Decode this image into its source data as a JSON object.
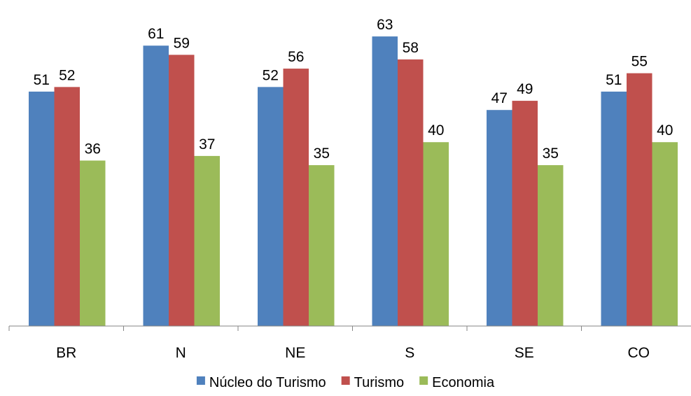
{
  "chart_data": {
    "type": "bar",
    "categories": [
      "BR",
      "N",
      "NE",
      "S",
      "SE",
      "CO"
    ],
    "series": [
      {
        "name": "Núcleo do Turismo",
        "values": [
          51,
          61,
          52,
          63,
          47,
          51
        ],
        "color": "#4F81BD"
      },
      {
        "name": "Turismo",
        "values": [
          52,
          59,
          56,
          58,
          49,
          55
        ],
        "color": "#C0504D"
      },
      {
        "name": "Economia",
        "values": [
          36,
          37,
          35,
          40,
          35,
          40
        ],
        "color": "#9BBB59"
      }
    ],
    "data_labels": true,
    "ylim": [
      0,
      70
    ],
    "y_axis_visible": false,
    "grid": false,
    "legend_position": "bottom"
  }
}
